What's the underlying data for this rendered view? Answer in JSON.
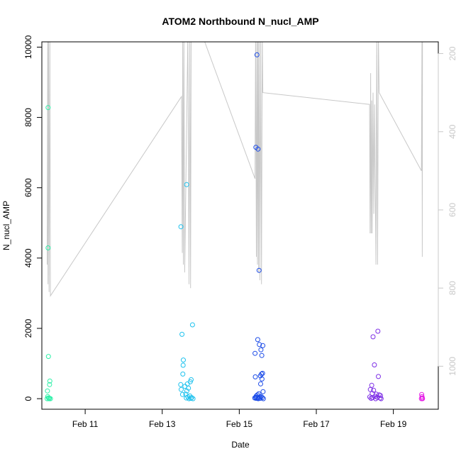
{
  "chart_data": {
    "type": "scatter",
    "title": "ATOM2 Northbound N_nucl_AMP",
    "xlabel": "Date",
    "ylabel": "N_nucl_AMP",
    "xlim": [
      "2014-02-09T21:00",
      "2014-02-20T04:00"
    ],
    "ylim": [
      -300,
      10150
    ],
    "y2lim": [
      1110,
      170
    ],
    "y2_reversed": true,
    "x_ticks": [
      {
        "date": "2014-02-11T00:00",
        "label": "Feb 11"
      },
      {
        "date": "2014-02-13T00:00",
        "label": "Feb 13"
      },
      {
        "date": "2014-02-15T00:00",
        "label": "Feb 15"
      },
      {
        "date": "2014-02-17T00:00",
        "label": "Feb 17"
      },
      {
        "date": "2014-02-19T00:00",
        "label": "Feb 19"
      }
    ],
    "y_ticks": [
      0,
      2000,
      4000,
      6000,
      8000,
      10000
    ],
    "y2_ticks": [
      200,
      400,
      600,
      800,
      1000
    ],
    "grid": false,
    "legend": "none",
    "points": [
      {
        "t": "2014-02-10T00:53",
        "y": 8280,
        "color": "#2ef0a8"
      },
      {
        "t": "2014-02-10T00:53",
        "y": 4290,
        "color": "#2ef0a8"
      },
      {
        "t": "2014-02-10T01:07",
        "y": 1200,
        "color": "#2ef0a8"
      },
      {
        "t": "2014-02-10T02:00",
        "y": 500,
        "color": "#2ef0a8"
      },
      {
        "t": "2014-02-10T01:50",
        "y": 400,
        "color": "#2ef0a8"
      },
      {
        "t": "2014-02-10T00:30",
        "y": 220,
        "color": "#2ef0a8"
      },
      {
        "t": "2014-02-10T00:40",
        "y": 60,
        "color": "#2ef0a8"
      },
      {
        "t": "2014-02-10T01:10",
        "y": 20,
        "color": "#2ef0a8"
      },
      {
        "t": "2014-02-10T01:30",
        "y": 0,
        "color": "#2ef0a8"
      },
      {
        "t": "2014-02-10T00:20",
        "y": 0,
        "color": "#2ef0a8"
      },
      {
        "t": "2014-02-10T02:20",
        "y": 0,
        "color": "#2ef0a8"
      },
      {
        "t": "2014-02-10T01:40",
        "y": 10,
        "color": "#2ef0a8"
      },
      {
        "t": "2014-02-13T11:40",
        "y": 4890,
        "color": "#1ec2ee"
      },
      {
        "t": "2014-02-13T15:10",
        "y": 6090,
        "color": "#1ec2ee"
      },
      {
        "t": "2014-02-13T18:50",
        "y": 2100,
        "color": "#1ec2ee"
      },
      {
        "t": "2014-02-13T12:20",
        "y": 1830,
        "color": "#1ec2ee"
      },
      {
        "t": "2014-02-13T13:10",
        "y": 1100,
        "color": "#1ec2ee"
      },
      {
        "t": "2014-02-13T13:00",
        "y": 950,
        "color": "#1ec2ee"
      },
      {
        "t": "2014-02-13T12:50",
        "y": 700,
        "color": "#1ec2ee"
      },
      {
        "t": "2014-02-13T18:00",
        "y": 540,
        "color": "#1ec2ee"
      },
      {
        "t": "2014-02-13T17:30",
        "y": 480,
        "color": "#1ec2ee"
      },
      {
        "t": "2014-02-13T15:40",
        "y": 420,
        "color": "#1ec2ee"
      },
      {
        "t": "2014-02-13T11:30",
        "y": 400,
        "color": "#1ec2ee"
      },
      {
        "t": "2014-02-13T14:10",
        "y": 350,
        "color": "#1ec2ee"
      },
      {
        "t": "2014-02-13T16:20",
        "y": 300,
        "color": "#1ec2ee"
      },
      {
        "t": "2014-02-13T11:50",
        "y": 260,
        "color": "#1ec2ee"
      },
      {
        "t": "2014-02-13T15:20",
        "y": 220,
        "color": "#1ec2ee"
      },
      {
        "t": "2014-02-13T14:40",
        "y": 130,
        "color": "#1ec2ee"
      },
      {
        "t": "2014-02-13T12:40",
        "y": 120,
        "color": "#1ec2ee"
      },
      {
        "t": "2014-02-13T17:10",
        "y": 80,
        "color": "#1ec2ee"
      },
      {
        "t": "2014-02-13T16:00",
        "y": 50,
        "color": "#1ec2ee"
      },
      {
        "t": "2014-02-13T18:20",
        "y": 30,
        "color": "#1ec2ee"
      },
      {
        "t": "2014-02-13T15:00",
        "y": 20,
        "color": "#1ec2ee"
      },
      {
        "t": "2014-02-13T17:50",
        "y": 10,
        "color": "#1ec2ee"
      },
      {
        "t": "2014-02-13T19:10",
        "y": 0,
        "color": "#1ec2ee"
      },
      {
        "t": "2014-02-13T16:40",
        "y": 0,
        "color": "#1ec2ee"
      },
      {
        "t": "2014-02-15T11:00",
        "y": 9780,
        "color": "#1b4be8"
      },
      {
        "t": "2014-02-15T10:20",
        "y": 7150,
        "color": "#1b4be8"
      },
      {
        "t": "2014-02-15T11:40",
        "y": 7100,
        "color": "#1b4be8"
      },
      {
        "t": "2014-02-15T12:20",
        "y": 3650,
        "color": "#1b4be8"
      },
      {
        "t": "2014-02-15T11:30",
        "y": 1680,
        "color": "#1b4be8"
      },
      {
        "t": "2014-02-15T12:30",
        "y": 1540,
        "color": "#1b4be8"
      },
      {
        "t": "2014-02-15T14:40",
        "y": 1510,
        "color": "#1b4be8"
      },
      {
        "t": "2014-02-15T13:30",
        "y": 1390,
        "color": "#1b4be8"
      },
      {
        "t": "2014-02-15T09:50",
        "y": 1290,
        "color": "#1b4be8"
      },
      {
        "t": "2014-02-15T14:00",
        "y": 1230,
        "color": "#1b4be8"
      },
      {
        "t": "2014-02-15T14:30",
        "y": 720,
        "color": "#1b4be8"
      },
      {
        "t": "2014-02-15T13:50",
        "y": 700,
        "color": "#1b4be8"
      },
      {
        "t": "2014-02-15T13:10",
        "y": 650,
        "color": "#1b4be8"
      },
      {
        "t": "2014-02-15T10:00",
        "y": 620,
        "color": "#1b4be8"
      },
      {
        "t": "2014-02-15T14:10",
        "y": 560,
        "color": "#1b4be8"
      },
      {
        "t": "2014-02-15T13:20",
        "y": 420,
        "color": "#1b4be8"
      },
      {
        "t": "2014-02-15T14:50",
        "y": 200,
        "color": "#1b4be8"
      },
      {
        "t": "2014-02-15T12:10",
        "y": 140,
        "color": "#1b4be8"
      },
      {
        "t": "2014-02-15T11:20",
        "y": 110,
        "color": "#1b4be8"
      },
      {
        "t": "2014-02-15T10:40",
        "y": 80,
        "color": "#1b4be8"
      },
      {
        "t": "2014-02-15T13:40",
        "y": 60,
        "color": "#1b4be8"
      },
      {
        "t": "2014-02-15T12:50",
        "y": 50,
        "color": "#1b4be8"
      },
      {
        "t": "2014-02-15T10:10",
        "y": 40,
        "color": "#1b4be8"
      },
      {
        "t": "2014-02-15T11:10",
        "y": 30,
        "color": "#1b4be8"
      },
      {
        "t": "2014-02-15T14:20",
        "y": 30,
        "color": "#1b4be8"
      },
      {
        "t": "2014-02-15T09:40",
        "y": 20,
        "color": "#1b4be8"
      },
      {
        "t": "2014-02-15T12:00",
        "y": 20,
        "color": "#1b4be8"
      },
      {
        "t": "2014-02-15T13:00",
        "y": 10,
        "color": "#1b4be8"
      },
      {
        "t": "2014-02-15T10:30",
        "y": 10,
        "color": "#1b4be8"
      },
      {
        "t": "2014-02-15T11:50",
        "y": 0,
        "color": "#1b4be8"
      },
      {
        "t": "2014-02-15T15:00",
        "y": 0,
        "color": "#1b4be8"
      },
      {
        "t": "2014-02-18T14:20",
        "y": 1920,
        "color": "#7d2ee6"
      },
      {
        "t": "2014-02-18T11:20",
        "y": 1760,
        "color": "#7d2ee6"
      },
      {
        "t": "2014-02-18T12:10",
        "y": 960,
        "color": "#7d2ee6"
      },
      {
        "t": "2014-02-18T14:40",
        "y": 630,
        "color": "#7d2ee6"
      },
      {
        "t": "2014-02-18T10:30",
        "y": 380,
        "color": "#7d2ee6"
      },
      {
        "t": "2014-02-18T09:40",
        "y": 260,
        "color": "#7d2ee6"
      },
      {
        "t": "2014-02-18T11:40",
        "y": 240,
        "color": "#7d2ee6"
      },
      {
        "t": "2014-02-18T10:50",
        "y": 150,
        "color": "#7d2ee6"
      },
      {
        "t": "2014-02-18T13:20",
        "y": 130,
        "color": "#7d2ee6"
      },
      {
        "t": "2014-02-18T15:10",
        "y": 110,
        "color": "#7d2ee6"
      },
      {
        "t": "2014-02-18T16:00",
        "y": 90,
        "color": "#7d2ee6"
      },
      {
        "t": "2014-02-18T12:40",
        "y": 70,
        "color": "#7d2ee6"
      },
      {
        "t": "2014-02-18T09:20",
        "y": 50,
        "color": "#7d2ee6"
      },
      {
        "t": "2014-02-18T14:00",
        "y": 40,
        "color": "#7d2ee6"
      },
      {
        "t": "2014-02-18T11:00",
        "y": 30,
        "color": "#7d2ee6"
      },
      {
        "t": "2014-02-18T15:40",
        "y": 20,
        "color": "#7d2ee6"
      },
      {
        "t": "2014-02-18T10:10",
        "y": 10,
        "color": "#7d2ee6"
      },
      {
        "t": "2014-02-18T13:00",
        "y": 0,
        "color": "#7d2ee6"
      },
      {
        "t": "2014-02-18T16:20",
        "y": 0,
        "color": "#7d2ee6"
      },
      {
        "t": "2014-02-19T17:40",
        "y": 120,
        "color": "#e61ee6"
      },
      {
        "t": "2014-02-19T17:50",
        "y": 60,
        "color": "#e61ee6"
      },
      {
        "t": "2014-02-19T18:00",
        "y": 20,
        "color": "#e61ee6"
      },
      {
        "t": "2014-02-19T17:30",
        "y": 0,
        "color": "#e61ee6"
      },
      {
        "t": "2014-02-19T18:10",
        "y": 0,
        "color": "#e61ee6"
      }
    ],
    "secondary_line": {
      "color": "#c8c8c8",
      "points": [
        [
          "2014-02-10T00:20",
          740
        ],
        [
          "2014-02-10T00:40",
          150
        ],
        [
          "2014-02-10T00:50",
          790
        ],
        [
          "2014-02-10T01:10",
          150
        ],
        [
          "2014-02-10T01:30",
          810
        ],
        [
          "2014-02-10T02:00",
          150
        ],
        [
          "2014-02-10T02:20",
          820
        ],
        [
          "2014-02-13T12:00",
          310
        ],
        [
          "2014-02-13T12:30",
          710
        ],
        [
          "2014-02-13T12:45",
          150
        ],
        [
          "2014-02-13T13:10",
          740
        ],
        [
          "2014-02-13T13:30",
          150
        ],
        [
          "2014-02-13T14:00",
          760
        ],
        [
          "2014-02-13T16:00",
          150
        ],
        [
          "2014-02-13T16:40",
          790
        ],
        [
          "2014-02-13T17:10",
          150
        ],
        [
          "2014-02-13T17:40",
          800
        ],
        [
          "2014-02-13T18:00",
          150
        ],
        [
          "2014-02-14T00:40",
          150
        ],
        [
          "2014-02-15T09:50",
          520
        ],
        [
          "2014-02-15T10:10",
          150
        ],
        [
          "2014-02-15T10:40",
          720
        ],
        [
          "2014-02-15T11:00",
          150
        ],
        [
          "2014-02-15T11:20",
          740
        ],
        [
          "2014-02-15T11:40",
          150
        ],
        [
          "2014-02-15T12:00",
          760
        ],
        [
          "2014-02-15T12:20",
          150
        ],
        [
          "2014-02-15T12:50",
          780
        ],
        [
          "2014-02-15T13:20",
          150
        ],
        [
          "2014-02-15T13:50",
          790
        ],
        [
          "2014-02-15T14:20",
          150
        ],
        [
          "2014-02-15T14:40",
          300
        ],
        [
          "2014-02-18T09:10",
          330
        ],
        [
          "2014-02-18T09:30",
          660
        ],
        [
          "2014-02-18T09:50",
          250
        ],
        [
          "2014-02-18T10:10",
          660
        ],
        [
          "2014-02-18T10:30",
          320
        ],
        [
          "2014-02-18T10:50",
          660
        ],
        [
          "2014-02-18T11:20",
          300
        ],
        [
          "2014-02-18T11:50",
          610
        ],
        [
          "2014-02-18T12:20",
          330
        ],
        [
          "2014-02-18T13:10",
          740
        ],
        [
          "2014-02-18T13:40",
          150
        ],
        [
          "2014-02-18T14:10",
          740
        ],
        [
          "2014-02-18T14:40",
          150
        ],
        [
          "2014-02-18T15:10",
          300
        ],
        [
          "2014-02-19T17:30",
          500
        ],
        [
          "2014-02-19T17:50",
          150
        ],
        [
          "2014-02-19T18:00",
          720
        ],
        [
          "2014-02-19T18:10",
          150
        ]
      ]
    }
  }
}
